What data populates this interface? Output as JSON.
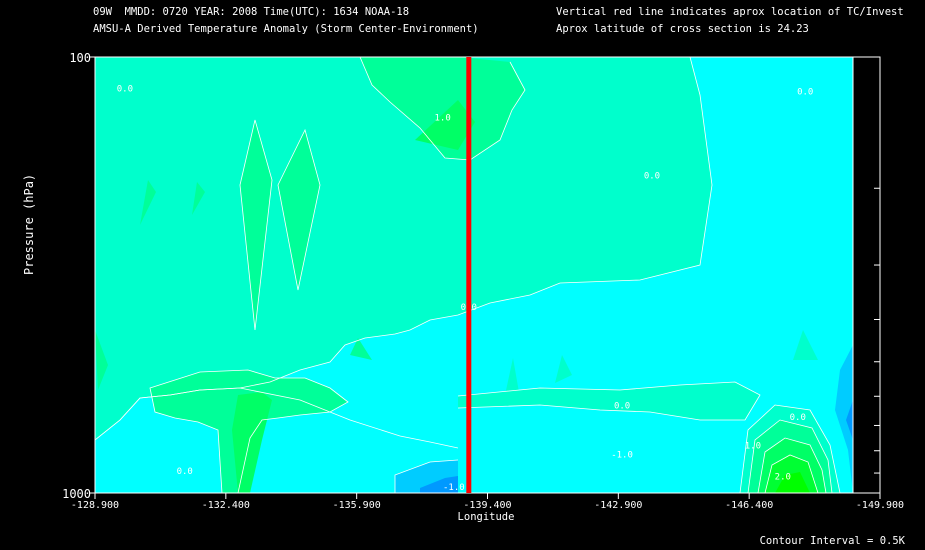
{
  "header": {
    "line1_left": "09W  MMDD: 0720 YEAR: 2008 Time(UTC): 1634 NOAA-18",
    "line2_left": "AMSU-A Derived Temperature Anomaly (Storm Center-Environment)",
    "line1_right": "Vertical red line indicates aprox location of TC/Invest",
    "line2_right": "Aprox latitude of cross section is 24.23"
  },
  "footer": {
    "contour_interval": "Contour Interval = 0.5K"
  },
  "colors": {
    "background": "#000000",
    "level_neg1": "#00ccff",
    "level_neg05": "#00ffff",
    "level_0": "#00ffcc",
    "level_pos05": "#00ff99",
    "level_pos1": "#00ff66",
    "level_pos15": "#00ff33",
    "level_pos2": "#00ff00",
    "tc_line": "#ff0000",
    "contour_line": "#ffffff"
  },
  "chart_data": {
    "type": "heatmap",
    "title": "AMSU-A Derived Temperature Anomaly (Storm Center-Environment)",
    "xlabel": "Longitude",
    "ylabel": "Pressure (hPa)",
    "x_ticks": [
      "-128.900",
      "-132.400",
      "-135.900",
      "-139.400",
      "-142.900",
      "-146.400",
      "-149.900"
    ],
    "y_ticks": [
      "100",
      "1000"
    ],
    "xlim": [
      -128.9,
      -149.9
    ],
    "ylim": [
      1000,
      100
    ],
    "y_scale": "log",
    "tc_longitude": -138.9,
    "cross_section_latitude": 24.23,
    "contour_interval_K": 0.5,
    "contour_labels": [
      {
        "text": "0.0",
        "lon": -129.7,
        "p": 120
      },
      {
        "text": "1.0",
        "lon": -138.2,
        "p": 140
      },
      {
        "text": "0.0",
        "lon": -143.8,
        "p": 190
      },
      {
        "text": "0.0",
        "lon": -147.9,
        "p": 122
      },
      {
        "text": "0.0",
        "lon": -138.9,
        "p": 380
      },
      {
        "text": "0.0",
        "lon": -143.0,
        "p": 640
      },
      {
        "text": "0.0",
        "lon": -147.7,
        "p": 680
      },
      {
        "text": "-1.0",
        "lon": -143.0,
        "p": 830
      },
      {
        "text": "1.0",
        "lon": -146.5,
        "p": 790
      },
      {
        "text": "2.0",
        "lon": -147.3,
        "p": 930
      },
      {
        "text": "0.0",
        "lon": -131.3,
        "p": 905
      },
      {
        "text": "-1.0",
        "lon": -138.5,
        "p": 985
      }
    ]
  }
}
